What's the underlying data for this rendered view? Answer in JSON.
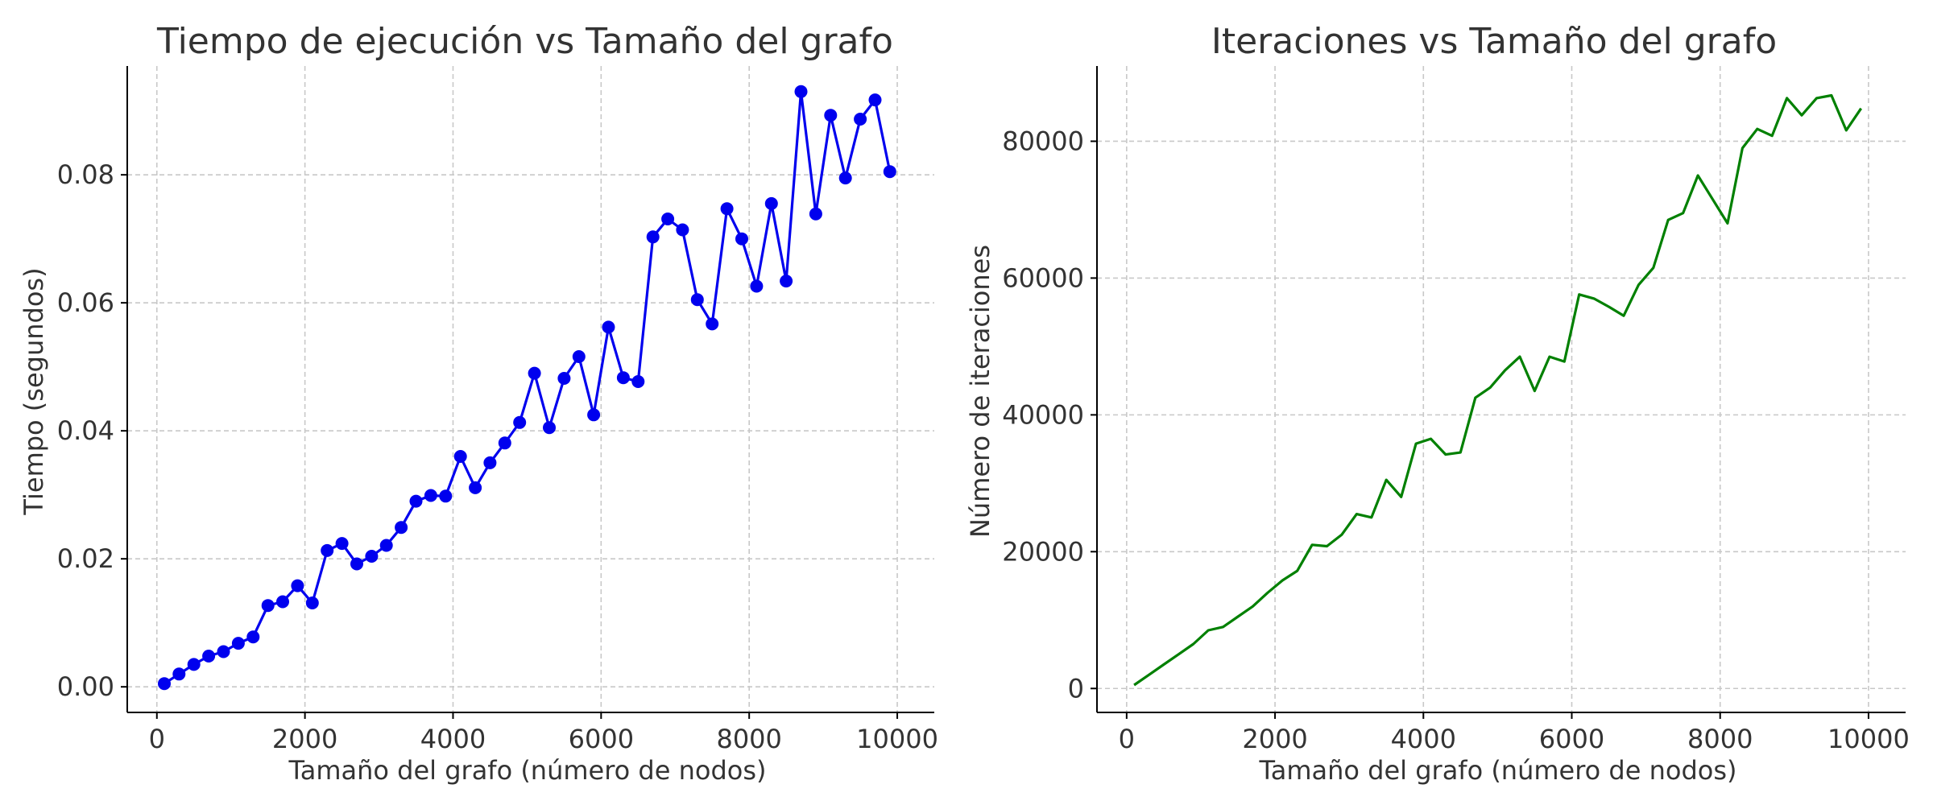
{
  "chart_data": [
    {
      "type": "line",
      "title": "Tiempo de ejecución vs Tamaño del grafo",
      "xlabel": "Tamaño del grafo (número de nodos)",
      "ylabel": "Tiempo (segundos)",
      "xlim": [
        -400,
        10500
      ],
      "ylim": [
        -0.004,
        0.097
      ],
      "xticks": [
        0,
        2000,
        4000,
        6000,
        8000,
        10000
      ],
      "yticks": [
        0.0,
        0.02,
        0.04,
        0.06,
        0.08
      ],
      "ytick_labels": [
        "0.00",
        "0.02",
        "0.04",
        "0.06",
        "0.08"
      ],
      "grid": true,
      "markers": true,
      "color": "#0000ee",
      "series": [
        {
          "x": [
            100,
            300,
            500,
            700,
            900,
            1100,
            1300,
            1500,
            1700,
            1900,
            2100,
            2300,
            2500,
            2700,
            2900,
            3100,
            3300,
            3500,
            3700,
            3900,
            4100,
            4300,
            4500,
            4700,
            4900,
            5100,
            5300,
            5500,
            5700,
            5900,
            6100,
            6300,
            6500,
            6700,
            6900,
            7100,
            7300,
            7500,
            7700,
            7900,
            8100,
            8300,
            8500,
            8700,
            8900,
            9100,
            9300,
            9500,
            9700,
            9900
          ],
          "values": [
            0.0005,
            0.002,
            0.0035,
            0.0048,
            0.0055,
            0.0068,
            0.0078,
            0.0127,
            0.0133,
            0.0158,
            0.0131,
            0.0213,
            0.0224,
            0.0192,
            0.0204,
            0.0221,
            0.0249,
            0.029,
            0.0299,
            0.0298,
            0.036,
            0.0311,
            0.035,
            0.0381,
            0.0413,
            0.049,
            0.0405,
            0.0482,
            0.0516,
            0.0425,
            0.0562,
            0.0483,
            0.0477,
            0.0703,
            0.0731,
            0.0714,
            0.0605,
            0.0567,
            0.0747,
            0.07,
            0.0626,
            0.0755,
            0.0634,
            0.093,
            0.0739,
            0.0893,
            0.0795,
            0.0887,
            0.0917,
            0.0805
          ]
        }
      ]
    },
    {
      "type": "line",
      "title": "Iteraciones vs Tamaño del grafo",
      "xlabel": "Tamaño del grafo (número de nodos)",
      "ylabel": "Número de iteraciones",
      "xlim": [
        -400,
        10500
      ],
      "ylim": [
        -3500,
        91000
      ],
      "xticks": [
        0,
        2000,
        4000,
        6000,
        8000,
        10000
      ],
      "yticks": [
        0,
        20000,
        40000,
        60000,
        80000
      ],
      "ytick_labels": [
        "0",
        "20000",
        "40000",
        "60000",
        "80000"
      ],
      "grid": true,
      "markers": false,
      "color": "#008000",
      "series": [
        {
          "x": [
            100,
            300,
            500,
            700,
            900,
            1100,
            1300,
            1500,
            1700,
            1900,
            2100,
            2300,
            2500,
            2700,
            2900,
            3100,
            3300,
            3500,
            3700,
            3900,
            4100,
            4300,
            4500,
            4700,
            4900,
            5100,
            5300,
            5500,
            5700,
            5900,
            6100,
            6300,
            6500,
            6700,
            6900,
            7100,
            7300,
            7500,
            7700,
            7900,
            8100,
            8300,
            8500,
            8700,
            8900,
            9100,
            9300,
            9500,
            9700,
            9900
          ],
          "values": [
            500,
            2000,
            3500,
            5000,
            6500,
            8500,
            9000,
            10500,
            12000,
            14000,
            15800,
            17200,
            21000,
            20800,
            22500,
            25500,
            25000,
            30500,
            28000,
            35800,
            36500,
            34200,
            34500,
            42500,
            44000,
            46500,
            48500,
            43500,
            48500,
            47800,
            57600,
            57000,
            55800,
            54500,
            59000,
            61500,
            68500,
            69500,
            75000,
            71500,
            68000,
            79000,
            81800,
            80800,
            86300,
            83800,
            86300,
            86700,
            81600,
            84800
          ]
        }
      ]
    }
  ]
}
